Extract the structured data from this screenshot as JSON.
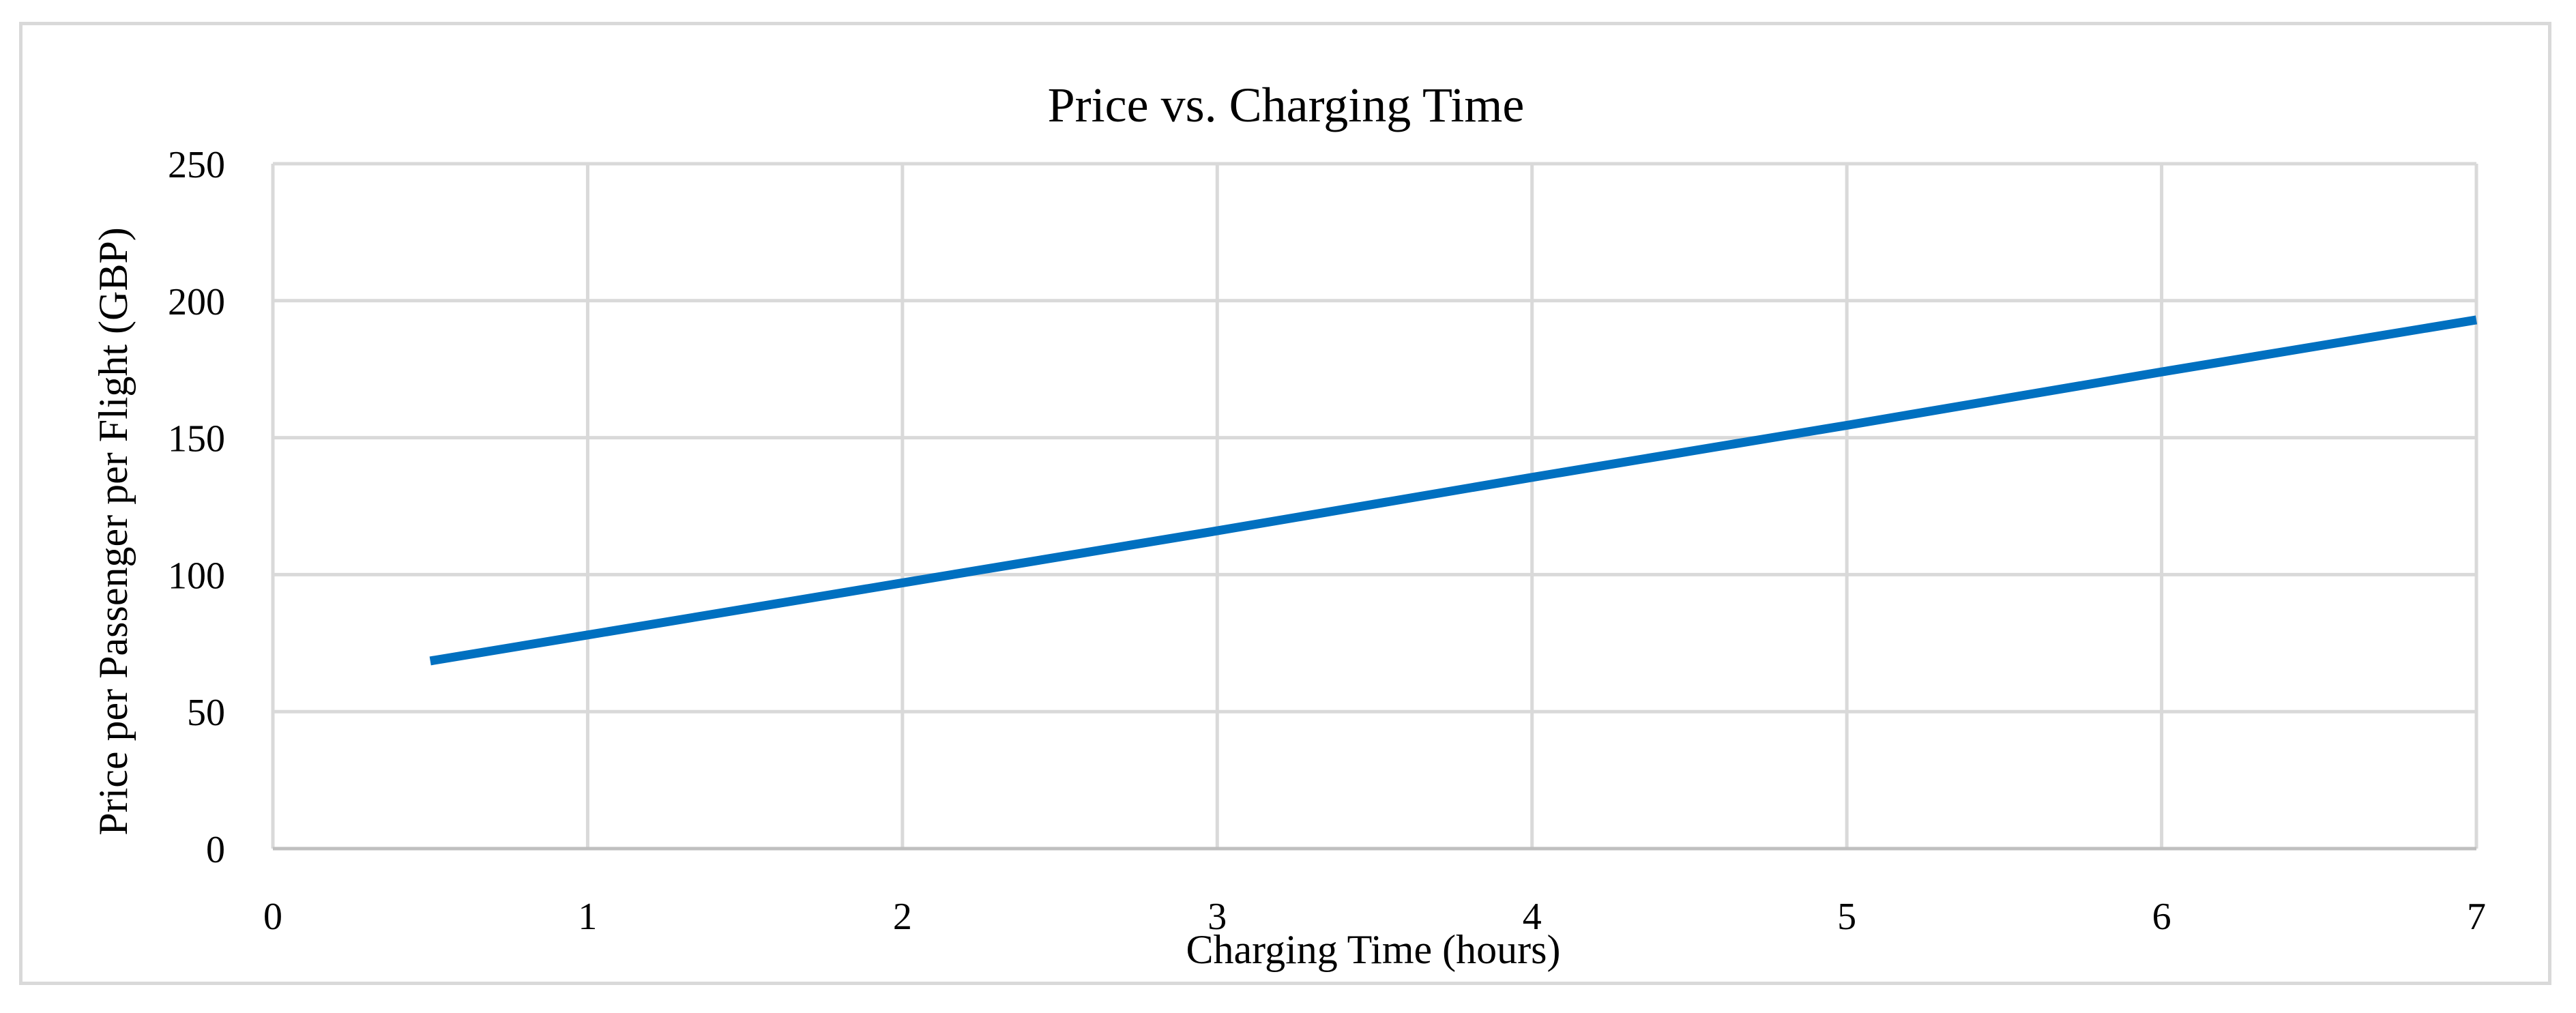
{
  "chart_data": {
    "type": "line",
    "title": "Price vs. Charging Time",
    "xlabel": "Charging Time (hours)",
    "ylabel": "Price per Passenger per Flight (GBP)",
    "xlim": [
      0,
      7
    ],
    "ylim": [
      0,
      250
    ],
    "x_ticks": [
      "0",
      "1",
      "2",
      "3",
      "4",
      "5",
      "6",
      "7"
    ],
    "y_ticks": [
      "0",
      "50",
      "100",
      "150",
      "200",
      "250"
    ],
    "grid": true,
    "legend": "none",
    "series": [
      {
        "color": "#0070c0",
        "x": [
          0.5,
          1,
          2,
          3,
          4,
          5,
          6,
          7
        ],
        "y": [
          68.5,
          78,
          97,
          116,
          135.5,
          154.5,
          174,
          193
        ]
      }
    ]
  },
  "colors": {
    "grid": "#d9d9d9",
    "frame": "#d9d9d9",
    "line": "#0070c0"
  }
}
